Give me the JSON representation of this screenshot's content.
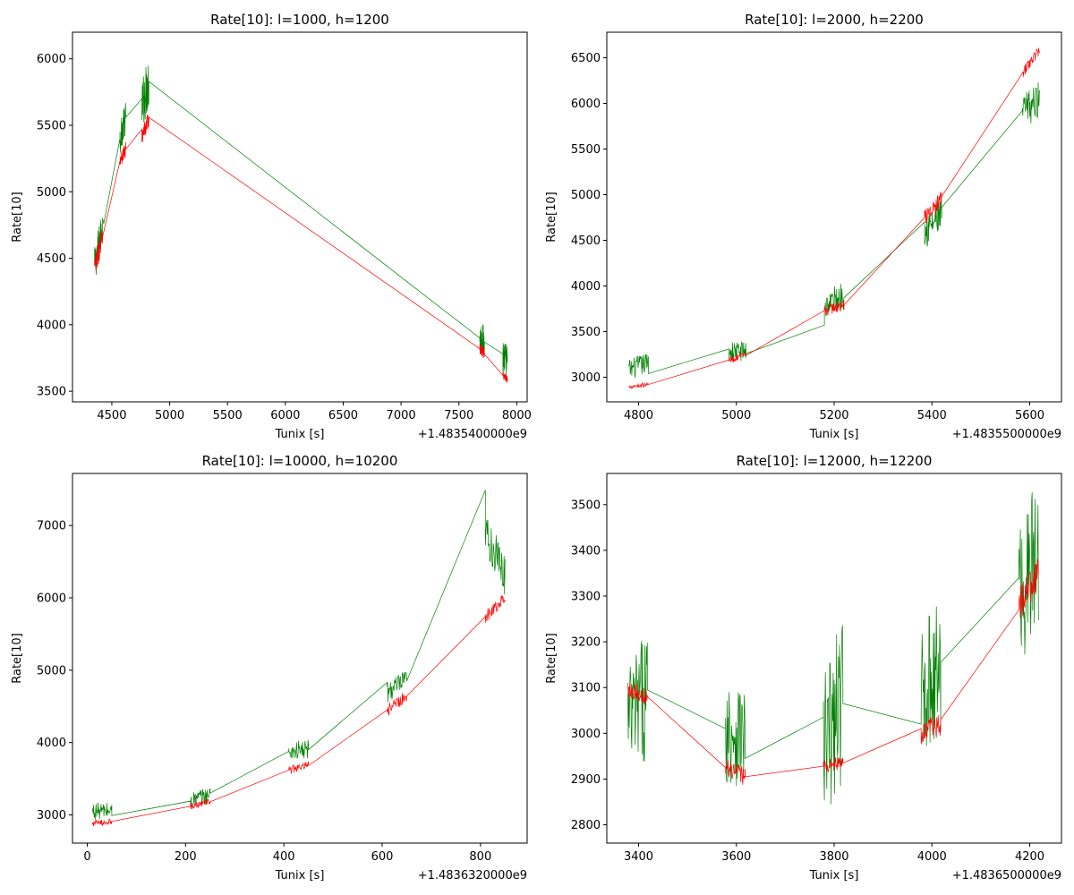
{
  "chart_data": [
    {
      "type": "line",
      "title": "Rate[10]: l=1000, h=1200",
      "xlabel": "Tunix [s]",
      "ylabel": "Rate[10]",
      "offset_text": "+1.4835400000e9",
      "xlim": [
        4160,
        8090
      ],
      "ylim": [
        3420,
        6200
      ],
      "xticks": [
        4500,
        5000,
        5500,
        6000,
        6500,
        7000,
        7500,
        8000
      ],
      "yticks": [
        3500,
        4000,
        4500,
        5000,
        5500,
        6000
      ],
      "grid": false,
      "series": [
        {
          "color": "#008000",
          "segments": [
            {
              "x0": 4350,
              "x1": 4420,
              "y0": 4440,
              "y1": 4740,
              "amp": 140
            },
            {
              "x0": 4430,
              "x1": 4570,
              "y0": 4760,
              "y1": 5400,
              "amp": 0
            },
            {
              "x0": 4570,
              "x1": 4620,
              "y0": 5400,
              "y1": 5560,
              "amp": 120
            },
            {
              "x0": 4620,
              "x1": 4760,
              "y0": 5560,
              "y1": 5700,
              "amp": 0
            },
            {
              "x0": 4760,
              "x1": 4820,
              "y0": 5650,
              "y1": 5830,
              "amp": 200
            },
            {
              "x0": 4820,
              "x1": 7680,
              "y0": 5830,
              "y1": 3900,
              "amp": 0
            },
            {
              "x0": 7680,
              "x1": 7720,
              "y0": 3900,
              "y1": 3870,
              "amp": 130
            },
            {
              "x0": 7720,
              "x1": 7880,
              "y0": 3870,
              "y1": 3780,
              "amp": 0
            },
            {
              "x0": 7880,
              "x1": 7920,
              "y0": 3780,
              "y1": 3700,
              "amp": 140
            }
          ]
        },
        {
          "color": "#ff0000",
          "segments": [
            {
              "x0": 4350,
              "x1": 4420,
              "y0": 4420,
              "y1": 4660,
              "amp": 90
            },
            {
              "x0": 4420,
              "x1": 4570,
              "y0": 4660,
              "y1": 5230,
              "amp": 0
            },
            {
              "x0": 4570,
              "x1": 4620,
              "y0": 5230,
              "y1": 5320,
              "amp": 60
            },
            {
              "x0": 4620,
              "x1": 4760,
              "y0": 5320,
              "y1": 5470,
              "amp": 0
            },
            {
              "x0": 4760,
              "x1": 4820,
              "y0": 5420,
              "y1": 5550,
              "amp": 60
            },
            {
              "x0": 4820,
              "x1": 7680,
              "y0": 5560,
              "y1": 3820,
              "amp": 0
            },
            {
              "x0": 7680,
              "x1": 7720,
              "y0": 3820,
              "y1": 3780,
              "amp": 40
            },
            {
              "x0": 7720,
              "x1": 7880,
              "y0": 3780,
              "y1": 3620,
              "amp": 0
            },
            {
              "x0": 7880,
              "x1": 7920,
              "y0": 3620,
              "y1": 3590,
              "amp": 30
            }
          ]
        }
      ]
    },
    {
      "type": "line",
      "title": "Rate[10]: l=2000, h=2200",
      "xlabel": "Tunix [s]",
      "ylabel": "Rate[10]",
      "offset_text": "+1.4835500000e9",
      "xlim": [
        4735,
        5665
      ],
      "ylim": [
        2730,
        6780
      ],
      "xticks": [
        4800,
        5000,
        5200,
        5400,
        5600
      ],
      "yticks": [
        3000,
        3500,
        4000,
        4500,
        5000,
        5500,
        6000,
        6500
      ],
      "grid": false,
      "series": [
        {
          "color": "#008000",
          "segments": [
            {
              "x0": 4780,
              "x1": 4820,
              "y0": 3080,
              "y1": 3160,
              "amp": 120
            },
            {
              "x0": 4820,
              "x1": 4985,
              "y0": 3040,
              "y1": 3310,
              "amp": 0
            },
            {
              "x0": 4985,
              "x1": 5020,
              "y0": 3280,
              "y1": 3290,
              "amp": 110
            },
            {
              "x0": 5020,
              "x1": 5180,
              "y0": 3260,
              "y1": 3570,
              "amp": 0
            },
            {
              "x0": 5180,
              "x1": 5220,
              "y0": 3780,
              "y1": 3900,
              "amp": 160
            },
            {
              "x0": 5220,
              "x1": 5385,
              "y0": 3870,
              "y1": 4700,
              "amp": 0
            },
            {
              "x0": 5385,
              "x1": 5420,
              "y0": 4600,
              "y1": 4780,
              "amp": 200
            },
            {
              "x0": 5420,
              "x1": 5585,
              "y0": 4860,
              "y1": 5920,
              "amp": 0
            },
            {
              "x0": 5585,
              "x1": 5620,
              "y0": 5900,
              "y1": 6050,
              "amp": 200
            }
          ]
        },
        {
          "color": "#ff0000",
          "segments": [
            {
              "x0": 4780,
              "x1": 4820,
              "y0": 2900,
              "y1": 2920,
              "amp": 25
            },
            {
              "x0": 4820,
              "x1": 4985,
              "y0": 2920,
              "y1": 3190,
              "amp": 0
            },
            {
              "x0": 4985,
              "x1": 5020,
              "y0": 3190,
              "y1": 3240,
              "amp": 40
            },
            {
              "x0": 5020,
              "x1": 5180,
              "y0": 3240,
              "y1": 3730,
              "amp": 0
            },
            {
              "x0": 5180,
              "x1": 5220,
              "y0": 3730,
              "y1": 3790,
              "amp": 60
            },
            {
              "x0": 5220,
              "x1": 5385,
              "y0": 3790,
              "y1": 4750,
              "amp": 0
            },
            {
              "x0": 5385,
              "x1": 5420,
              "y0": 4750,
              "y1": 4950,
              "amp": 90
            },
            {
              "x0": 5420,
              "x1": 5585,
              "y0": 4980,
              "y1": 6330,
              "amp": 0
            },
            {
              "x0": 5585,
              "x1": 5620,
              "y0": 6330,
              "y1": 6590,
              "amp": 60
            }
          ]
        }
      ]
    },
    {
      "type": "line",
      "title": "Rate[10]: l=10000, h=10200",
      "xlabel": "Tunix [s]",
      "ylabel": "Rate[10]",
      "offset_text": "+1.4836320000e9",
      "xlim": [
        -30,
        895
      ],
      "ylim": [
        2610,
        7720
      ],
      "xticks": [
        0,
        200,
        400,
        600,
        800
      ],
      "yticks": [
        3000,
        4000,
        5000,
        6000,
        7000
      ],
      "grid": false,
      "series": [
        {
          "color": "#008000",
          "segments": [
            {
              "x0": 10,
              "x1": 50,
              "y0": 3050,
              "y1": 3060,
              "amp": 120
            },
            {
              "x0": 50,
              "x1": 210,
              "y0": 2990,
              "y1": 3190,
              "amp": 0
            },
            {
              "x0": 210,
              "x1": 250,
              "y0": 3190,
              "y1": 3280,
              "amp": 120
            },
            {
              "x0": 250,
              "x1": 410,
              "y0": 3300,
              "y1": 3880,
              "amp": 0
            },
            {
              "x0": 410,
              "x1": 450,
              "y0": 3880,
              "y1": 3900,
              "amp": 140
            },
            {
              "x0": 450,
              "x1": 610,
              "y0": 3900,
              "y1": 4830,
              "amp": 0
            },
            {
              "x0": 610,
              "x1": 650,
              "y0": 4700,
              "y1": 4850,
              "amp": 160
            },
            {
              "x0": 650,
              "x1": 810,
              "y0": 4850,
              "y1": 7490,
              "amp": 0
            },
            {
              "x0": 810,
              "x1": 850,
              "y0": 6900,
              "y1": 6300,
              "amp": 300
            }
          ]
        },
        {
          "color": "#ff0000",
          "segments": [
            {
              "x0": 10,
              "x1": 50,
              "y0": 2880,
              "y1": 2910,
              "amp": 40
            },
            {
              "x0": 50,
              "x1": 210,
              "y0": 2910,
              "y1": 3120,
              "amp": 0
            },
            {
              "x0": 210,
              "x1": 250,
              "y0": 3120,
              "y1": 3180,
              "amp": 50
            },
            {
              "x0": 250,
              "x1": 410,
              "y0": 3180,
              "y1": 3620,
              "amp": 0
            },
            {
              "x0": 410,
              "x1": 450,
              "y0": 3620,
              "y1": 3680,
              "amp": 60
            },
            {
              "x0": 450,
              "x1": 610,
              "y0": 3680,
              "y1": 4450,
              "amp": 0
            },
            {
              "x0": 610,
              "x1": 650,
              "y0": 4450,
              "y1": 4640,
              "amp": 90
            },
            {
              "x0": 650,
              "x1": 810,
              "y0": 4640,
              "y1": 5740,
              "amp": 0
            },
            {
              "x0": 810,
              "x1": 850,
              "y0": 5740,
              "y1": 6000,
              "amp": 90
            }
          ]
        }
      ]
    },
    {
      "type": "line",
      "title": "Rate[10]: l=12000, h=12200",
      "xlabel": "Tunix [s]",
      "ylabel": "Rate[10]",
      "offset_text": "+1.4836500000e9",
      "xlim": [
        3335,
        4265
      ],
      "ylim": [
        2760,
        3568
      ],
      "xticks": [
        3400,
        3600,
        3800,
        4000,
        4200
      ],
      "yticks": [
        2800,
        2900,
        3000,
        3100,
        3200,
        3300,
        3400,
        3500
      ],
      "grid": false,
      "series": [
        {
          "color": "#008000",
          "segments": [
            {
              "x0": 3378,
              "x1": 3418,
              "y0": 3020,
              "y1": 3090,
              "amp": 140
            },
            {
              "x0": 3418,
              "x1": 3578,
              "y0": 3095,
              "y1": 3010,
              "amp": 0
            },
            {
              "x0": 3578,
              "x1": 3618,
              "y0": 3010,
              "y1": 3000,
              "amp": 120
            },
            {
              "x0": 3618,
              "x1": 3778,
              "y0": 2945,
              "y1": 3035,
              "amp": 0
            },
            {
              "x0": 3778,
              "x1": 3818,
              "y0": 2950,
              "y1": 3080,
              "amp": 180
            },
            {
              "x0": 3818,
              "x1": 3978,
              "y0": 3065,
              "y1": 3020,
              "amp": 0
            },
            {
              "x0": 3978,
              "x1": 4018,
              "y0": 3100,
              "y1": 3140,
              "amp": 150
            },
            {
              "x0": 4018,
              "x1": 4178,
              "y0": 3155,
              "y1": 3340,
              "amp": 0
            },
            {
              "x0": 4178,
              "x1": 4218,
              "y0": 3300,
              "y1": 3400,
              "amp": 170
            }
          ]
        },
        {
          "color": "#ff0000",
          "segments": [
            {
              "x0": 3378,
              "x1": 3418,
              "y0": 3100,
              "y1": 3080,
              "amp": 20
            },
            {
              "x0": 3418,
              "x1": 3578,
              "y0": 3080,
              "y1": 2925,
              "amp": 0
            },
            {
              "x0": 3578,
              "x1": 3618,
              "y0": 2925,
              "y1": 2905,
              "amp": 20
            },
            {
              "x0": 3618,
              "x1": 3778,
              "y0": 2905,
              "y1": 2928,
              "amp": 0
            },
            {
              "x0": 3778,
              "x1": 3818,
              "y0": 2928,
              "y1": 2935,
              "amp": 15
            },
            {
              "x0": 3818,
              "x1": 3978,
              "y0": 2935,
              "y1": 3010,
              "amp": 0
            },
            {
              "x0": 3978,
              "x1": 4018,
              "y0": 3000,
              "y1": 3020,
              "amp": 25
            },
            {
              "x0": 4018,
              "x1": 4178,
              "y0": 3030,
              "y1": 3270,
              "amp": 0
            },
            {
              "x0": 4178,
              "x1": 4218,
              "y0": 3280,
              "y1": 3345,
              "amp": 40
            }
          ]
        }
      ]
    }
  ]
}
